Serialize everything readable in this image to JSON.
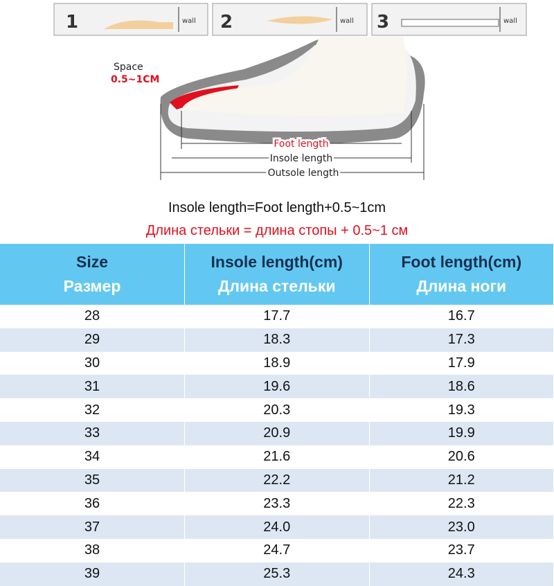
{
  "instructions": {
    "steps": [
      {
        "number": "1",
        "label": "wall"
      },
      {
        "number": "2",
        "label": "wall"
      },
      {
        "number": "3",
        "label": "wall"
      }
    ]
  },
  "diagram": {
    "space_label": "Space",
    "space_value": "0.5~1CM",
    "foot_length": "Foot length",
    "insole_length": "Insole length",
    "outsole_length": "Outsole length"
  },
  "formula": {
    "english": "Insole length=Foot length+0.5~1cm",
    "russian": "Длина стельки = длина стопы + 0.5~1 см"
  },
  "table": {
    "columns": [
      {
        "title": "Size",
        "subtitle": "Размер"
      },
      {
        "title": "Insole length(cm)",
        "subtitle": "Длина стельки"
      },
      {
        "title": "Foot length(cm)",
        "subtitle": "Длина ноги"
      }
    ],
    "rows": [
      [
        "28",
        "17.7",
        "16.7"
      ],
      [
        "29",
        "18.3",
        "17.3"
      ],
      [
        "30",
        "18.9",
        "17.9"
      ],
      [
        "31",
        "19.6",
        "18.6"
      ],
      [
        "32",
        "20.3",
        "19.3"
      ],
      [
        "33",
        "20.9",
        "19.9"
      ],
      [
        "34",
        "21.6",
        "20.6"
      ],
      [
        "35",
        "22.2",
        "21.2"
      ],
      [
        "36",
        "23.3",
        "22.3"
      ],
      [
        "37",
        "24.0",
        "23.0"
      ],
      [
        "38",
        "24.7",
        "23.7"
      ],
      [
        "39",
        "25.3",
        "24.3"
      ]
    ]
  }
}
